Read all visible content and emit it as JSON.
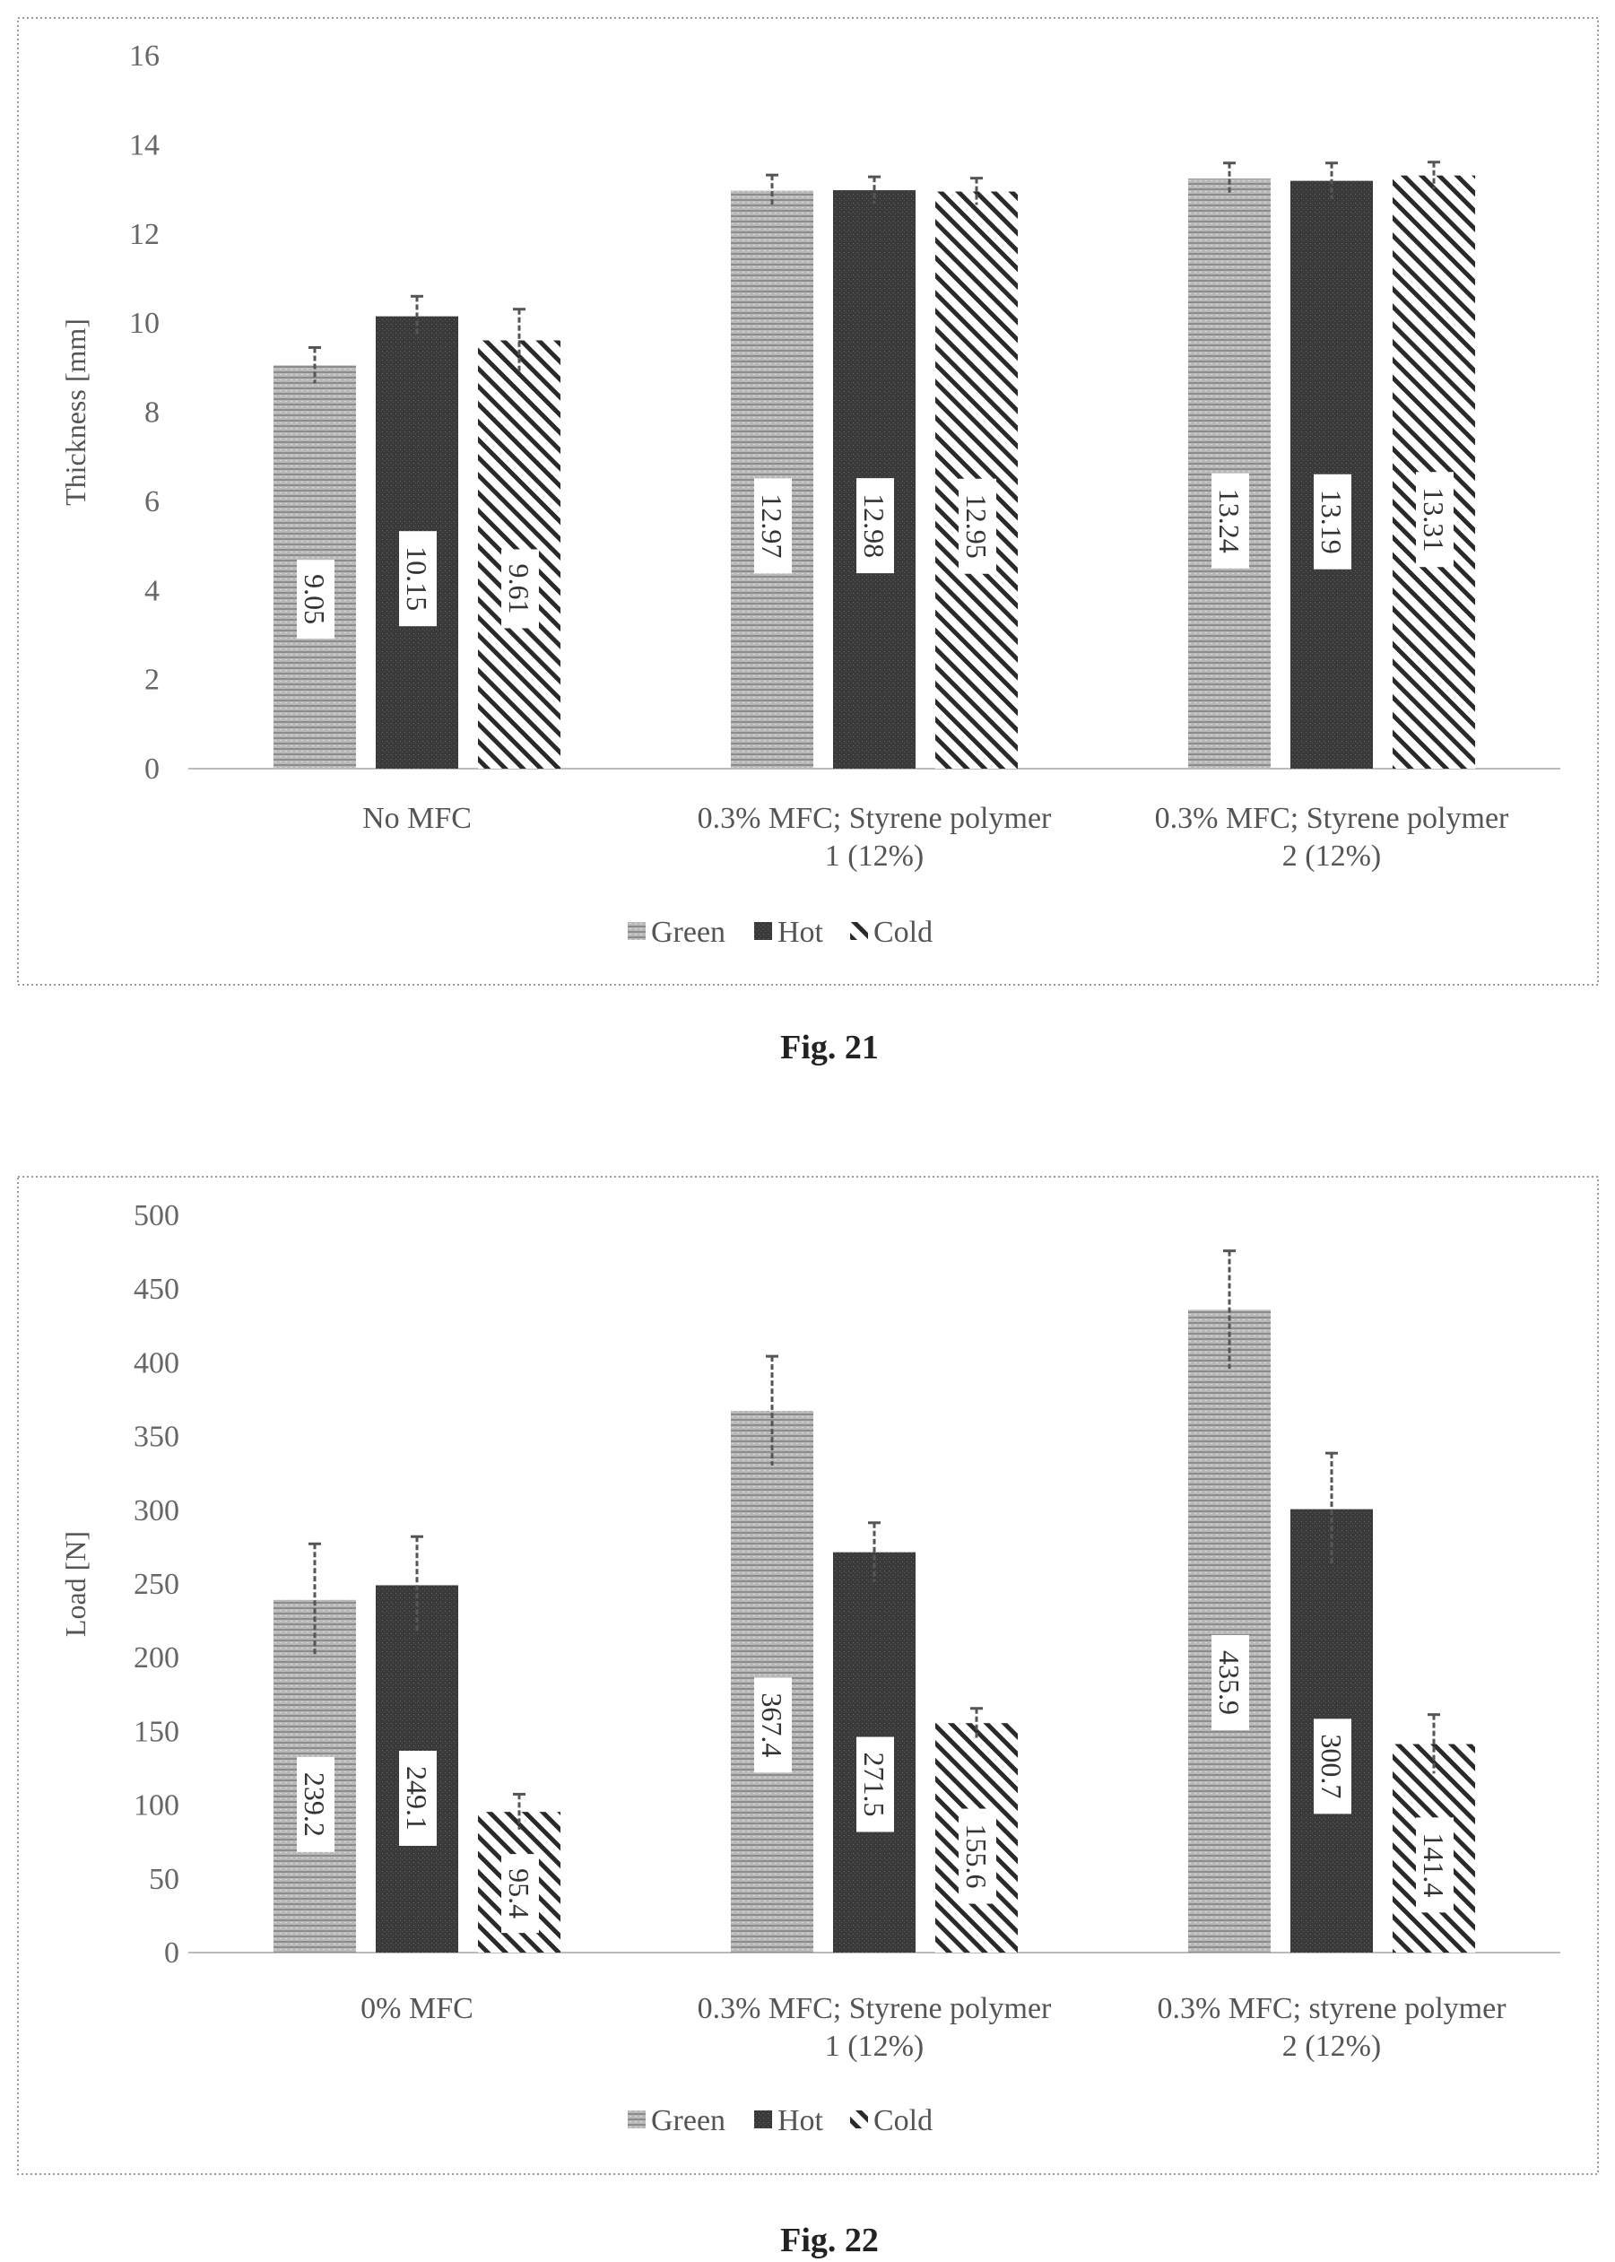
{
  "chart_data": [
    {
      "type": "bar",
      "caption": "Fig. 21",
      "ylabel": "Thickness [mm]",
      "ylim": [
        0,
        16
      ],
      "yticks": [
        "0",
        "2",
        "4",
        "6",
        "8",
        "10",
        "12",
        "14",
        "16"
      ],
      "categories": [
        [
          "No MFC"
        ],
        [
          "0.3% MFC; Styrene polymer",
          "1 (12%)"
        ],
        [
          "0.3% MFC; Styrene polymer",
          "2 (12%)"
        ]
      ],
      "series": [
        {
          "name": "Green",
          "values": [
            9.05,
            12.97,
            13.24
          ],
          "errors": [
            0.4,
            0.35,
            0.35
          ],
          "labels": [
            "9.05",
            "12.97",
            "13.24"
          ]
        },
        {
          "name": "Hot",
          "values": [
            10.15,
            12.98,
            13.19
          ],
          "errors": [
            0.45,
            0.3,
            0.4
          ],
          "labels": [
            "10.15",
            "12.98",
            "13.19"
          ]
        },
        {
          "name": "Cold",
          "values": [
            9.61,
            12.95,
            13.31
          ],
          "errors": [
            0.7,
            0.3,
            0.3
          ],
          "labels": [
            "9.61",
            "12.95",
            "13.31"
          ]
        }
      ],
      "legend": "bottom",
      "grid": false
    },
    {
      "type": "bar",
      "caption": "Fig. 22",
      "ylabel": "Load [N]",
      "ylim": [
        0,
        500
      ],
      "yticks": [
        "0",
        "50",
        "100",
        "150",
        "200",
        "250",
        "300",
        "350",
        "400",
        "450",
        "500"
      ],
      "categories": [
        [
          "0% MFC"
        ],
        [
          "0.3% MFC; Styrene polymer",
          "1 (12%)"
        ],
        [
          "0.3% MFC; styrene polymer",
          "2 (12%)"
        ]
      ],
      "series": [
        {
          "name": "Green",
          "values": [
            239.2,
            367.4,
            435.9
          ],
          "errors": [
            38,
            37,
            40
          ],
          "labels": [
            "239.2",
            "367.4",
            "435.9"
          ]
        },
        {
          "name": "Hot",
          "values": [
            249.1,
            271.5,
            300.7
          ],
          "errors": [
            33,
            20,
            38
          ],
          "labels": [
            "249.1",
            "271.5",
            "300.7"
          ]
        },
        {
          "name": "Cold",
          "values": [
            95.4,
            155.6,
            141.4
          ],
          "errors": [
            12,
            10,
            20
          ],
          "labels": [
            "95.4",
            "155.6",
            "141.4"
          ]
        }
      ],
      "legend": "bottom",
      "grid": false
    }
  ],
  "colors": {
    "green_fill": "#b9b9b9",
    "hot_fill": "#3a3a3a",
    "cold_fill": "#ffffff",
    "cold_hatch": "#2a2a2a",
    "axis": "#bbbbbb",
    "border": "#9a9a9a"
  }
}
